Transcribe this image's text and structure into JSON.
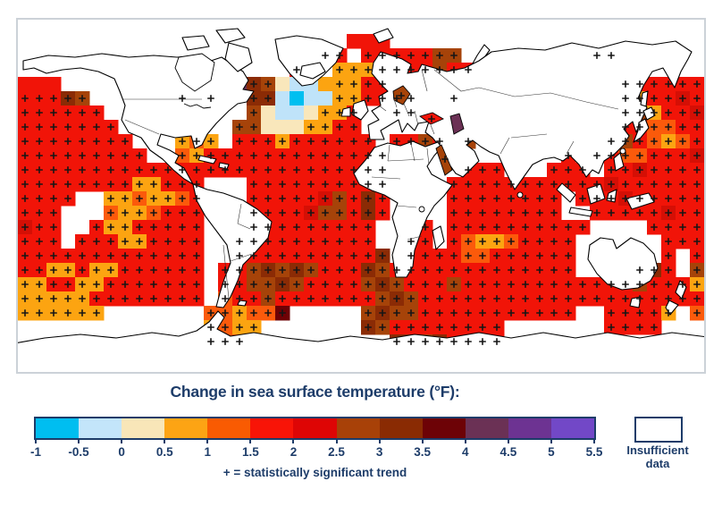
{
  "page": {
    "background": "#ffffff"
  },
  "legend": {
    "title": "Change in sea surface temperature (°F):",
    "ticks": [
      "-1",
      "-0.5",
      "0",
      "0.5",
      "1",
      "1.5",
      "2",
      "2.5",
      "3",
      "3.5",
      "4",
      "4.5",
      "5",
      "5.5"
    ],
    "colors": [
      "#00bef0",
      "#c3e5fa",
      "#f8e6b8",
      "#fda414",
      "#f95b02",
      "#f81407",
      "#de0505",
      "#a84108",
      "#8a2b03",
      "#6d0206",
      "#6b3155",
      "#6d3392",
      "#7248c7"
    ],
    "note": "+ = statistically significant trend",
    "insufficient_line1": "Insufficient",
    "insufficient_line2": "data",
    "text_color": "#1d3c69"
  },
  "map": {
    "frame_color": "#ccd2d8",
    "coast_color": "#000000",
    "land_fill": "#ffffff",
    "plus_color": "#161616",
    "plus_chars": "REOACNDM",
    "cell_size": 16,
    "palette": {
      "R": "#f11408",
      "e": "#f11408",
      "E": "#d50f05",
      "O": "#fb5a0b",
      "o": "#fb5a0b",
      "A": "#fca411",
      "a": "#fca411",
      "C": "#f9e7bb",
      "c": "#f9e7bb",
      "l": "#bfe3f9",
      "b": "#00bff0",
      "N": "#a64309",
      "n": "#a64309",
      "D": "#8b2b05",
      "M": "#6e0105",
      "P": "#6b3155"
    },
    "rows": [
      "................................................",
      ".......................eee......................",
      ".....................RR.RRRRRNN.........NO......",
      "...................R..AAARRRRNRR................",
      "eee............PDNcllaAARR................RRRRRR",
      "RRRDN......R.N..DDlbllAARRND..R...........DARRER",
      "RRRRRR..........NcllcAAR..ND..............DNARRE",
      "RRRRRRR........NNcccAARR..................RROORR",
      "RRRRRRRR...AOA.RRRARRRRRR.RRNR.N.........DNROAOR",
      "RRRRRRRRR..OARRRRRRRRRRRRR............R.RROORRRE",
      "RRRRRRRRRRRRRRRRRRRRRRRRRR.....RRR...RRR.RRERRRR",
      "RRRRRRRRAARRR...RRRRRRRRRR....RRRRRRRRRRRERRRRRR",
      "RRRR..AAOAAOR...RRRRRENRDR....RRRRRRRR.RRRERRRRR",
      "RRR...OAAORRR...RRRRENNRDR....RRRRRRRR..RRRRRERR",
      "ERR..RAARRRRR...RRRRRRRRR...R.RRRRRRRRRR....RRRR",
      "RRR.RRRAARRRR..RRRRRRRRRR..RR.ROAAORRRR......RRR",
      "RRRRRRRRRRRRR..RRRRRRRRRRD.RRRROORRRRRR......R.R",
      "RRAARAARRRRRR.RRNDNDNRRRDNRRRRRRRRRRRRR....NDR.N",
      "AARRAARRRRRRR.RRNNDNRRRRNDNRRRNRRRRRRRRRRRRNRRRA",
      "AAAAARRRRRRRR.ORRNRRRRRRRNDNRRRRRRRRRRRRRRRRRRRR",
      "AAAAAA.......OOAOOM.....NDNNRRRRRRRRRRR..RRRRA.O",
      ".............AOAA.......DNRRRRRRRR.......RRRR...",
      ".............OOO..........DDNDRRRR.............."
    ],
    "extra_plus": [
      [
        463,
        111
      ],
      [
        478,
        156
      ],
      [
        429,
        85
      ]
    ]
  },
  "chart_data": {
    "type": "heatmap",
    "title": "Change in sea surface temperature (°F)",
    "units": "°F",
    "legend_values": [
      -1,
      -0.5,
      0,
      0.5,
      1,
      1.5,
      2,
      2.5,
      3,
      3.5,
      4,
      4.5,
      5,
      5.5
    ],
    "legend_colors": [
      "#00bef0",
      "#c3e5fa",
      "#f8e6b8",
      "#fda414",
      "#f95b02",
      "#f81407",
      "#de0505",
      "#a84108",
      "#8a2b03",
      "#6d0206",
      "#6b3155",
      "#6d3392",
      "#7248c7"
    ],
    "note": "+ = statistically significant trend",
    "no_data_label": "Insufficient data",
    "description": "World map of change in sea surface temperature: most ocean grid cells show warming of +0.5 to +2.5°F (orange/red) with statistically significant trends (+), cooling of -1 to 0°F (cyan/light blue) south of Greenland, strongest warming above +2.5°F (brown/maroon) along western boundary currents (Argentine basin, Agulhas, Kuroshio, Tasman Sea); white areas insufficient data"
  }
}
